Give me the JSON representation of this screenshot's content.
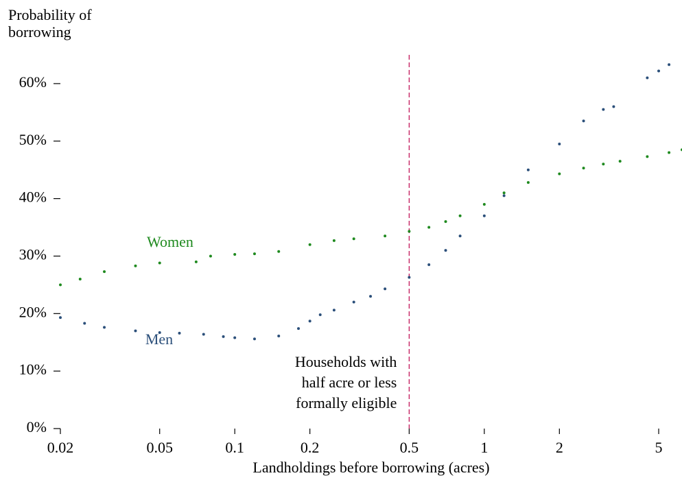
{
  "chart_data": {
    "type": "scatter",
    "ylabel": [
      "Probability of",
      "borrowing"
    ],
    "xlabel": "Landholdings before borrowing (acres)",
    "xscale": "log",
    "xlim": [
      0.02,
      6.2
    ],
    "ylim": [
      0,
      65
    ],
    "xticks": [
      0.02,
      0.05,
      0.1,
      0.2,
      0.5,
      1,
      2,
      5
    ],
    "yticks": [
      {
        "value": 0,
        "label": "0%"
      },
      {
        "value": 10,
        "label": "10%"
      },
      {
        "value": 20,
        "label": "20%"
      },
      {
        "value": 30,
        "label": "30%"
      },
      {
        "value": 40,
        "label": "40%"
      },
      {
        "value": 50,
        "label": "50%"
      },
      {
        "value": 60,
        "label": "60%"
      }
    ],
    "reference_line": {
      "x": 0.5,
      "color": "#c2185b",
      "label": [
        "Households with",
        "half acre or less",
        "formally eligible"
      ]
    },
    "series": [
      {
        "name": "Women",
        "color": "#1f8a1f",
        "x": [
          0.02,
          0.024,
          0.03,
          0.04,
          0.05,
          0.07,
          0.08,
          0.1,
          0.12,
          0.15,
          0.2,
          0.25,
          0.3,
          0.4,
          0.5,
          0.6,
          0.7,
          0.8,
          1,
          1.2,
          1.5,
          2,
          2.5,
          3,
          3.5,
          4.5,
          5.5,
          6.2
        ],
        "values": [
          25,
          26,
          27.3,
          28.3,
          28.8,
          29,
          30,
          30.3,
          30.4,
          30.8,
          32,
          32.7,
          33,
          33.5,
          34.3,
          35,
          36,
          37,
          39,
          41,
          42.8,
          44.3,
          45.3,
          46,
          46.5,
          47.3,
          48,
          48.5
        ]
      },
      {
        "name": "Men",
        "color": "#2b4f7a",
        "x": [
          0.02,
          0.025,
          0.03,
          0.04,
          0.05,
          0.06,
          0.075,
          0.09,
          0.1,
          0.12,
          0.15,
          0.18,
          0.2,
          0.22,
          0.25,
          0.3,
          0.35,
          0.4,
          0.5,
          0.6,
          0.7,
          0.8,
          1,
          1.2,
          1.5,
          2,
          2.5,
          3,
          3.3,
          4.5,
          5,
          5.5
        ],
        "values": [
          19.3,
          18.3,
          17.6,
          17,
          16.7,
          16.6,
          16.4,
          16,
          15.8,
          15.6,
          16.1,
          17.4,
          18.7,
          19.8,
          20.6,
          22,
          23,
          24.3,
          26.3,
          28.5,
          31,
          33.5,
          37,
          40.5,
          45,
          49.5,
          53.5,
          55.5,
          56,
          61,
          62.2,
          63.3
        ]
      }
    ]
  }
}
